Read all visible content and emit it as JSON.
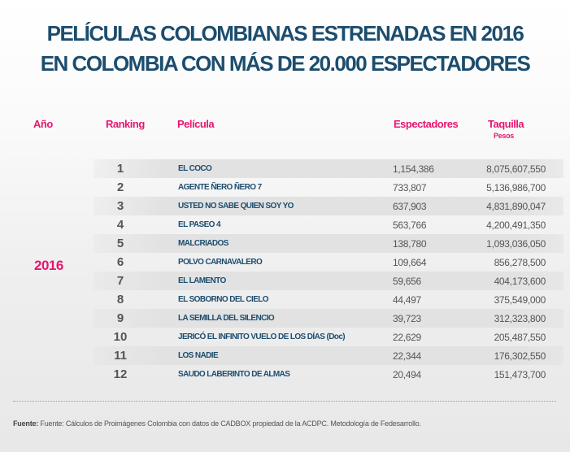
{
  "title": {
    "line1": "PELÍCULAS COLOMBIANAS ESTRENADAS EN 2016",
    "line2": "EN COLOMBIA CON MÁS DE 20.000 ESPECTADORES"
  },
  "headers": {
    "year": "Año",
    "ranking": "Ranking",
    "movie": "Película",
    "viewers": "Espectadores",
    "boxoffice": "Taquilla",
    "boxoffice_unit": "Pesos"
  },
  "year": "2016",
  "rows": [
    {
      "rank": "1",
      "movie": "EL COCO",
      "viewers": "1,154,386",
      "boxoffice": "8,075,607,550"
    },
    {
      "rank": "2",
      "movie": "AGENTE ÑERO ÑERO 7",
      "viewers": "733,807",
      "boxoffice": "5,136,986,700"
    },
    {
      "rank": "3",
      "movie": "USTED NO SABE QUIEN SOY YO",
      "viewers": "637,903",
      "boxoffice": "4,831,890,047"
    },
    {
      "rank": "4",
      "movie": "EL PASEO 4",
      "viewers": "563,766",
      "boxoffice": "4,200,491,350"
    },
    {
      "rank": "5",
      "movie": "MALCRIADOS",
      "viewers": "138,780",
      "boxoffice": "1,093,036,050"
    },
    {
      "rank": "6",
      "movie": "POLVO CARNAVALERO",
      "viewers": "109,664",
      "boxoffice": "856,278,500"
    },
    {
      "rank": "7",
      "movie": "EL LAMENTO",
      "viewers": "59,656",
      "boxoffice": "404,173,600"
    },
    {
      "rank": "8",
      "movie": "EL SOBORNO DEL CIELO",
      "viewers": "44,497",
      "boxoffice": "375,549,000"
    },
    {
      "rank": "9",
      "movie": "LA SEMILLA DEL SILENCIO",
      "viewers": "39,723",
      "boxoffice": "312,323,800"
    },
    {
      "rank": "10",
      "movie": "JERICÓ EL INFINITO VUELO DE LOS DÍAS (Doc)",
      "viewers": "22,629",
      "boxoffice": "205,487,550"
    },
    {
      "rank": "11",
      "movie": "LOS NADIE",
      "viewers": "22,344",
      "boxoffice": "176,302,550"
    },
    {
      "rank": "12",
      "movie": "SAUDO LABERINTO DE ALMAS",
      "viewers": "20,494",
      "boxoffice": "151,473,700"
    }
  ],
  "source": {
    "label": "Fuente:",
    "text": "Fuente: Cálculos de Proimágenes Colombia con datos de CADBOX propiedad de la ACDPC. Metodología de Fedesarrollo."
  }
}
